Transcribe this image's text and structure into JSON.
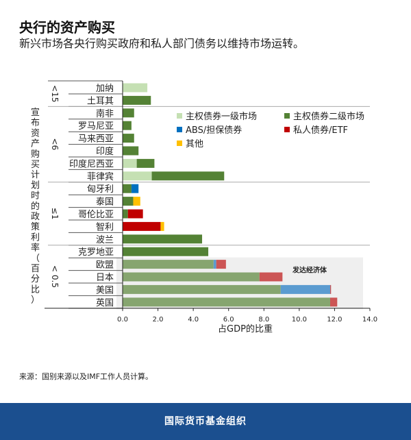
{
  "title": "央行的资产购买",
  "subtitle": "新兴市场各央行购买政府和私人部门债务以维持市场运转。",
  "source": "来源：国别来源以及IMF工作人员计算。",
  "footer": "国际货币基金组织",
  "chart_data": {
    "type": "bar",
    "orientation": "horizontal-stacked",
    "xlabel": "占GDP的比重",
    "ylabel": "宣布资产购买计划时的政策利率（百分比）",
    "xlim": [
      0,
      14
    ],
    "xticks": [
      "0.0",
      "2.0",
      "4.0",
      "6.0",
      "8.0",
      "10.0",
      "12.0",
      "14.0"
    ],
    "annotation": "发达经济体",
    "groups": [
      {
        "label": "<15",
        "count": 2
      },
      {
        "label": "<6",
        "count": 6
      },
      {
        "label": "≤1",
        "count": 5
      },
      {
        "label": "< 0.5",
        "count": 5
      }
    ],
    "categories": [
      "加纳",
      "土耳其",
      "南非",
      "罗马尼亚",
      "马来西亚",
      "印度",
      "印度尼西亚",
      "菲律宾",
      "匈牙利",
      "泰国",
      "哥伦比亚",
      "智利",
      "波兰",
      "克罗地亚",
      "欧盟",
      "日本",
      "美国",
      "英国"
    ],
    "developed": [
      false,
      false,
      false,
      false,
      false,
      false,
      false,
      false,
      false,
      false,
      false,
      false,
      false,
      false,
      true,
      true,
      true,
      true
    ],
    "series": [
      {
        "name": "主权债券一级市场",
        "color": "#c5e0b3",
        "values": [
          1.4,
          0,
          0,
          0,
          0,
          0,
          0.8,
          1.65,
          0,
          0,
          0,
          0,
          0,
          0,
          0,
          0,
          0,
          0
        ]
      },
      {
        "name": "主权债券二级市场",
        "color": "#548235",
        "muted": "#86a56f",
        "values": [
          0,
          1.6,
          0.65,
          0.5,
          0.65,
          0.9,
          1.0,
          4.1,
          0.5,
          0.6,
          0.3,
          0,
          4.5,
          4.85,
          5.15,
          7.75,
          8.95,
          11.75
        ]
      },
      {
        "name": "ABS/担保债券",
        "color": "#0070c0",
        "muted": "#5b9bd0",
        "values": [
          0,
          0,
          0,
          0,
          0,
          0,
          0,
          0,
          0.4,
          0,
          0,
          0,
          0,
          0,
          0.15,
          0,
          2.8,
          0
        ]
      },
      {
        "name": "私人债券/ETF",
        "color": "#c00000",
        "muted": "#cc5555",
        "values": [
          0,
          0,
          0,
          0,
          0,
          0,
          0,
          0,
          0,
          0,
          0.85,
          2.15,
          0,
          0,
          0.55,
          1.3,
          0.05,
          0.4
        ]
      },
      {
        "name": "其他",
        "color": "#ffc000",
        "muted": "#ffc000",
        "values": [
          0,
          0,
          0,
          0,
          0,
          0,
          0,
          0,
          0,
          0.4,
          0,
          0.2,
          0,
          0,
          0,
          0,
          0,
          0
        ]
      }
    ]
  }
}
